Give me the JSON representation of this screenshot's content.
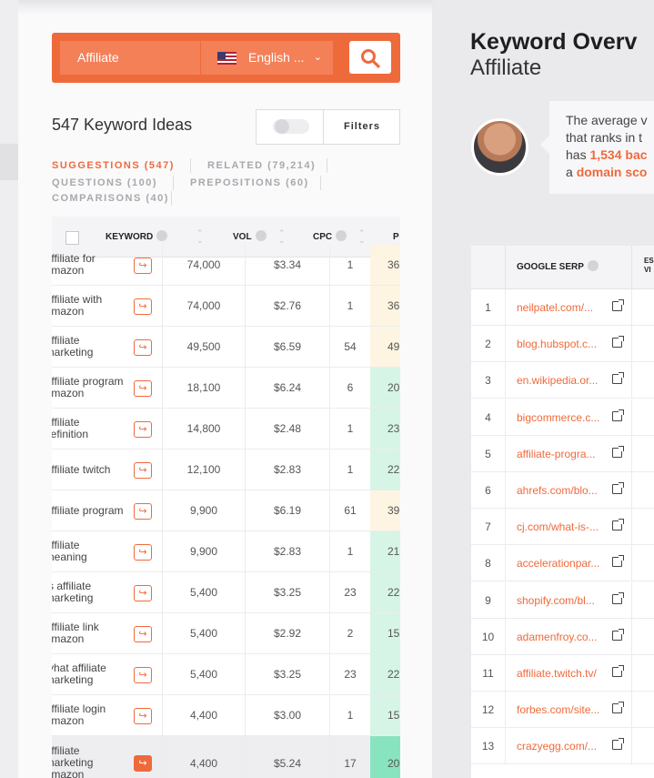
{
  "search": {
    "value": "Affiliate",
    "language": "English ...",
    "flag": "us-flag",
    "chevron": "⌄"
  },
  "ideas": {
    "title": "547 Keyword Ideas",
    "filters_label": "Filters"
  },
  "tabs": [
    {
      "label": "SUGGESTIONS (547)",
      "active": true
    },
    {
      "label": "RELATED (79,214)",
      "active": false
    },
    {
      "label": "QUESTIONS (100)",
      "active": false
    },
    {
      "label": "PREPOSITIONS (60)",
      "active": false
    },
    {
      "label": "COMPARISONS (40)",
      "active": false
    }
  ],
  "table": {
    "headers": {
      "keyword": "KEYWORD",
      "vol": "VOL",
      "cpc": "CPC",
      "pd": "P"
    },
    "go_icon": "↪",
    "rows": [
      {
        "keyword": "ıffiliate for\nımazon",
        "vol": "74,000",
        "cpc": "$3.34",
        "pd_num": "1",
        "sd": "36"
      },
      {
        "keyword": "ıffiliate with\nımazon",
        "vol": "74,000",
        "cpc": "$2.76",
        "pd_num": "1",
        "sd": "36"
      },
      {
        "keyword": "ıffiliate\nnarketing",
        "vol": "49,500",
        "cpc": "$6.59",
        "pd_num": "54",
        "sd": "49"
      },
      {
        "keyword": "ıffiliate program\nımazon",
        "vol": "18,100",
        "cpc": "$6.24",
        "pd_num": "6",
        "sd": "20"
      },
      {
        "keyword": "ıffiliate\nlefinition",
        "vol": "14,800",
        "cpc": "$2.48",
        "pd_num": "1",
        "sd": "23"
      },
      {
        "keyword": "ıffiliate twitch",
        "vol": "12,100",
        "cpc": "$2.83",
        "pd_num": "1",
        "sd": "22"
      },
      {
        "keyword": "ıffiliate program",
        "vol": "9,900",
        "cpc": "$6.19",
        "pd_num": "61",
        "sd": "39"
      },
      {
        "keyword": "ıffiliate\nneaning",
        "vol": "9,900",
        "cpc": "$2.83",
        "pd_num": "1",
        "sd": "21"
      },
      {
        "keyword": "s affiliate\nnarketing",
        "vol": "5,400",
        "cpc": "$3.25",
        "pd_num": "23",
        "sd": "22"
      },
      {
        "keyword": "ıffiliate link\nımazon",
        "vol": "5,400",
        "cpc": "$2.92",
        "pd_num": "2",
        "sd": "15"
      },
      {
        "keyword": "vhat affiliate\nnarketing",
        "vol": "5,400",
        "cpc": "$3.25",
        "pd_num": "23",
        "sd": "22"
      },
      {
        "keyword": "ıffiliate login\nımazon",
        "vol": "4,400",
        "cpc": "$3.00",
        "pd_num": "1",
        "sd": "15"
      },
      {
        "keyword": "ıffiliate\nnarketing\nımazon",
        "vol": "4,400",
        "cpc": "$5.24",
        "pd_num": "17",
        "sd": "20"
      }
    ]
  },
  "overview": {
    "title": "Keyword Overv",
    "subtitle": "Affiliate",
    "bubble": {
      "line1": "The average v",
      "line2": "that ranks in t",
      "line3_prefix": "has ",
      "line3_highlight": "1,534 bac",
      "line4_prefix": "a ",
      "line4_highlight": "domain sco"
    }
  },
  "serp": {
    "header": "GOOGLE SERP",
    "header2": "ES\nVI",
    "ext_icon": "external-link-icon",
    "rows": [
      {
        "rank": "1",
        "url": "neilpatel.com/..."
      },
      {
        "rank": "2",
        "url": "blog.hubspot.c..."
      },
      {
        "rank": "3",
        "url": "en.wikipedia.or..."
      },
      {
        "rank": "4",
        "url": "bigcommerce.c..."
      },
      {
        "rank": "5",
        "url": "affiliate-progra..."
      },
      {
        "rank": "6",
        "url": "ahrefs.com/blo..."
      },
      {
        "rank": "7",
        "url": "cj.com/what-is-..."
      },
      {
        "rank": "8",
        "url": "accelerationpar..."
      },
      {
        "rank": "9",
        "url": "shopify.com/bl..."
      },
      {
        "rank": "10",
        "url": "adamenfroy.co..."
      },
      {
        "rank": "11",
        "url": "affiliate.twitch.tv/"
      },
      {
        "rank": "12",
        "url": "forbes.com/site..."
      },
      {
        "rank": "13",
        "url": "crazyegg.com/..."
      }
    ]
  },
  "colors": {
    "accent": "#ef6a3b",
    "sd_green": "#d6f5e6",
    "sd_yellow": "#fdf5e2",
    "sd_green_strong": "#88e4bf"
  }
}
